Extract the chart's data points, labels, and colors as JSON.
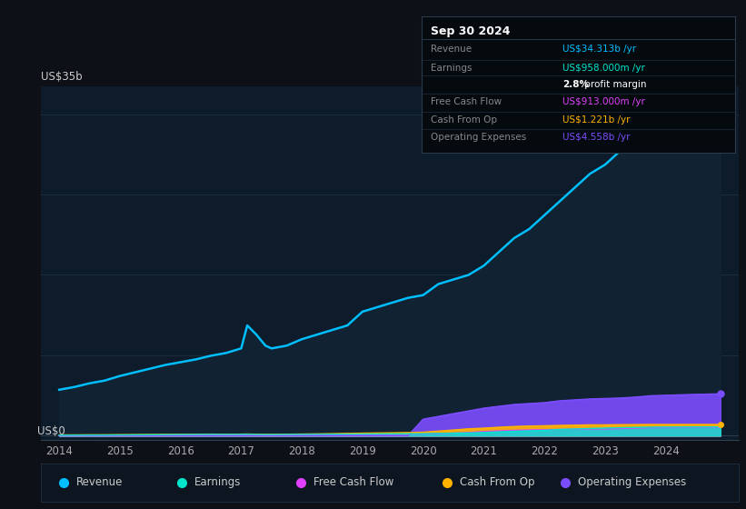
{
  "bg_color": "#0d1117",
  "plot_bg_color": "#0d1b2a",
  "title": "Sep 30 2024",
  "ylabel_top": "US$35b",
  "ylabel_bottom": "US$0",
  "years": [
    2014,
    2014.25,
    2014.5,
    2014.75,
    2015,
    2015.25,
    2015.5,
    2015.75,
    2016,
    2016.25,
    2016.5,
    2016.75,
    2017,
    2017.1,
    2017.25,
    2017.4,
    2017.5,
    2017.75,
    2018,
    2018.25,
    2018.5,
    2018.75,
    2019,
    2019.25,
    2019.5,
    2019.75,
    2020,
    2020.25,
    2020.5,
    2020.75,
    2021,
    2021.25,
    2021.5,
    2021.75,
    2022,
    2022.25,
    2022.5,
    2022.75,
    2023,
    2023.25,
    2023.5,
    2023.75,
    2024,
    2024.5,
    2024.9
  ],
  "revenue": [
    5.0,
    5.3,
    5.7,
    6.0,
    6.5,
    6.9,
    7.3,
    7.7,
    8.0,
    8.3,
    8.7,
    9.0,
    9.5,
    12.0,
    11.0,
    9.8,
    9.5,
    9.8,
    10.5,
    11.0,
    11.5,
    12.0,
    13.5,
    14.0,
    14.5,
    15.0,
    15.3,
    16.5,
    17.0,
    17.5,
    18.5,
    20.0,
    21.5,
    22.5,
    24.0,
    25.5,
    27.0,
    28.5,
    29.5,
    31.0,
    32.0,
    33.0,
    33.5,
    34.0,
    34.3
  ],
  "earnings": [
    0.05,
    0.06,
    0.07,
    0.07,
    0.08,
    0.09,
    0.1,
    0.11,
    0.12,
    0.13,
    0.14,
    0.13,
    0.14,
    0.15,
    0.13,
    0.12,
    0.12,
    0.13,
    0.14,
    0.15,
    0.16,
    0.17,
    0.18,
    0.19,
    0.2,
    0.21,
    0.22,
    0.25,
    0.28,
    0.3,
    0.35,
    0.42,
    0.48,
    0.53,
    0.58,
    0.68,
    0.73,
    0.78,
    0.82,
    0.87,
    0.9,
    0.93,
    0.94,
    0.95,
    0.958
  ],
  "free_cash_flow": [
    0.04,
    0.04,
    0.05,
    0.05,
    0.06,
    0.06,
    0.07,
    0.07,
    0.08,
    0.08,
    0.09,
    0.08,
    0.09,
    0.09,
    0.08,
    0.07,
    0.07,
    0.08,
    0.09,
    0.1,
    0.11,
    0.12,
    0.13,
    0.14,
    0.15,
    0.16,
    0.18,
    0.22,
    0.28,
    0.35,
    0.45,
    0.52,
    0.58,
    0.62,
    0.65,
    0.68,
    0.7,
    0.72,
    0.74,
    0.78,
    0.82,
    0.87,
    0.88,
    0.9,
    0.913
  ],
  "cash_from_op": [
    0.08,
    0.09,
    0.1,
    0.1,
    0.11,
    0.12,
    0.13,
    0.14,
    0.15,
    0.16,
    0.17,
    0.15,
    0.17,
    0.18,
    0.16,
    0.14,
    0.14,
    0.16,
    0.18,
    0.2,
    0.22,
    0.25,
    0.28,
    0.3,
    0.32,
    0.34,
    0.38,
    0.5,
    0.62,
    0.75,
    0.82,
    0.92,
    1.0,
    1.05,
    1.08,
    1.12,
    1.15,
    1.18,
    1.18,
    1.2,
    1.21,
    1.22,
    1.22,
    1.22,
    1.221
  ],
  "operating_expenses": [
    0.0,
    0.0,
    0.0,
    0.0,
    0.0,
    0.0,
    0.0,
    0.0,
    0.0,
    0.0,
    0.0,
    0.0,
    0.0,
    0.0,
    0.0,
    0.0,
    0.0,
    0.0,
    0.0,
    0.0,
    0.0,
    0.0,
    0.0,
    0.0,
    0.0,
    0.0,
    1.8,
    2.1,
    2.4,
    2.7,
    3.0,
    3.2,
    3.4,
    3.5,
    3.6,
    3.8,
    3.9,
    4.0,
    4.05,
    4.1,
    4.2,
    4.35,
    4.4,
    4.5,
    4.558
  ],
  "colors": {
    "revenue": "#00bfff",
    "revenue_fill": "#112233",
    "earnings": "#00e5cc",
    "free_cash_flow": "#e040fb",
    "cash_from_op": "#ffb300",
    "operating_expenses": "#7c4dff"
  },
  "legend_items": [
    {
      "label": "Revenue",
      "color": "#00bfff"
    },
    {
      "label": "Earnings",
      "color": "#00e5cc"
    },
    {
      "label": "Free Cash Flow",
      "color": "#e040fb"
    },
    {
      "label": "Cash From Op",
      "color": "#ffb300"
    },
    {
      "label": "Operating Expenses",
      "color": "#7c4dff"
    }
  ],
  "xlim": [
    2013.7,
    2025.2
  ],
  "ylim": [
    -0.5,
    38.0
  ],
  "xticks": [
    2014,
    2015,
    2016,
    2017,
    2018,
    2019,
    2020,
    2021,
    2022,
    2023,
    2024
  ],
  "table": {
    "title": "Sep 30 2024",
    "rows": [
      {
        "label": "Revenue",
        "value": "US$34.313b /yr",
        "value_color": "#00bfff",
        "label_color": "#888888"
      },
      {
        "label": "Earnings",
        "value": "US$958.000m /yr",
        "value_color": "#00e5cc",
        "label_color": "#888888"
      },
      {
        "label": "",
        "value": "2.8% profit margin",
        "value_color": "#ffffff",
        "label_color": "#888888"
      },
      {
        "label": "Free Cash Flow",
        "value": "US$913.000m /yr",
        "value_color": "#e040fb",
        "label_color": "#888888"
      },
      {
        "label": "Cash From Op",
        "value": "US$1.221b /yr",
        "value_color": "#ffb300",
        "label_color": "#888888"
      },
      {
        "label": "Operating Expenses",
        "value": "US$4.558b /yr",
        "value_color": "#7c4dff",
        "label_color": "#888888"
      }
    ]
  }
}
